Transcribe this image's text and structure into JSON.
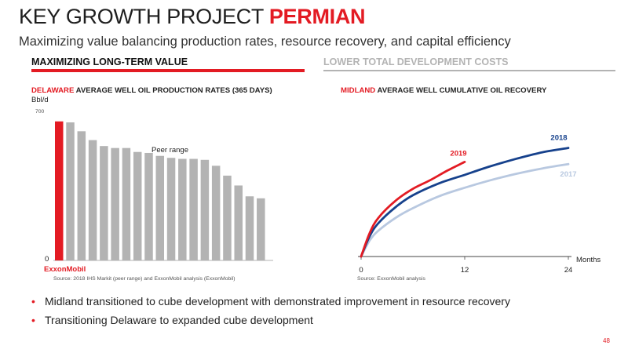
{
  "slide": {
    "title_main": "KEY GROWTH PROJECT ",
    "title_highlight": "PERMIAN",
    "subtitle": "Maximizing value balancing production rates, resource recovery, and capital efficiency",
    "section_left": "MAXIMIZING LONG-TERM VALUE",
    "section_right": "LOWER TOTAL DEVELOPMENT COSTS",
    "bullets": [
      "Midland transitioned to cube development with demonstrated improvement in resource recovery",
      "Transitioning Delaware to expanded cube development"
    ],
    "bullet_glyph": "•",
    "page_number": "48",
    "colors": {
      "accent": "#e31b23",
      "muted": "#b3b3b3"
    }
  },
  "chart_data": [
    {
      "type": "bar",
      "title_highlight": "DELAWARE",
      "title": " AVERAGE WELL OIL PRODUCTION RATES (365 DAYS)",
      "ylabel": "Bbl/d",
      "ylim": [
        0,
        700
      ],
      "yticks": [
        "0",
        "700"
      ],
      "highlight_label": "ExxonMobil",
      "annotation": "Peer range",
      "source": "Source: 2018 IHS Markit (peer range) and ExxonMobil analysis (ExxonMobil)",
      "highlight_color": "#e31b23",
      "peer_color": "#b3b3b3",
      "values": [
        705,
        700,
        655,
        610,
        580,
        570,
        570,
        550,
        545,
        530,
        520,
        515,
        515,
        510,
        480,
        430,
        380,
        325,
        315
      ]
    },
    {
      "type": "line",
      "title_highlight": "MIDLAND",
      "title": " AVERAGE WELL CUMULATIVE OIL RECOVERY",
      "xlabel": "Months",
      "xticks": [
        0,
        12,
        24
      ],
      "xlim": [
        0,
        24
      ],
      "ylim": [
        0,
        100
      ],
      "source": "Source: ExxonMobil analysis",
      "series": [
        {
          "name": "2017",
          "color": "#b8c8e0",
          "x": [
            0,
            1,
            2,
            4,
            6,
            9,
            12,
            15,
            18,
            21,
            24
          ],
          "values": [
            0,
            15,
            24,
            36,
            45,
            56,
            64,
            71,
            77,
            82,
            86
          ]
        },
        {
          "name": "2018",
          "color": "#16418c",
          "x": [
            0,
            1,
            2,
            4,
            6,
            9,
            12,
            15,
            18,
            21,
            24
          ],
          "values": [
            0,
            19,
            31,
            46,
            57,
            68,
            76,
            84,
            91,
            97,
            101
          ]
        },
        {
          "name": "2019",
          "color": "#e31b23",
          "x": [
            0,
            1,
            2,
            4,
            6,
            8,
            10,
            12
          ],
          "values": [
            0,
            22,
            36,
            52,
            63,
            71,
            80,
            88
          ]
        }
      ]
    }
  ]
}
